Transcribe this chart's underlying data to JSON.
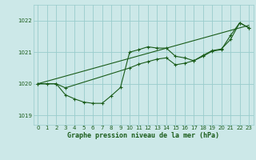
{
  "title": "Graphe pression niveau de la mer (hPa)",
  "bg_color": "#cce8e8",
  "grid_color": "#99cccc",
  "line_color": "#1a5c1a",
  "xlim": [
    -0.5,
    23.5
  ],
  "ylim": [
    1018.7,
    1022.5
  ],
  "yticks": [
    1019,
    1020,
    1021,
    1022
  ],
  "xticks": [
    0,
    1,
    2,
    3,
    4,
    5,
    6,
    7,
    8,
    9,
    10,
    11,
    12,
    13,
    14,
    15,
    16,
    17,
    18,
    19,
    20,
    21,
    22,
    23
  ],
  "line1_x": [
    0,
    1,
    2,
    3,
    4,
    5,
    6,
    7,
    8,
    9,
    10,
    11,
    12,
    13,
    14,
    15,
    16,
    17,
    18,
    19,
    20,
    21,
    22,
    23
  ],
  "line1_y": [
    1020.0,
    1020.0,
    1020.0,
    1019.65,
    1019.52,
    1019.42,
    1019.38,
    1019.38,
    1019.62,
    1019.88,
    1021.0,
    1021.08,
    1021.17,
    1021.13,
    1021.13,
    1020.87,
    1020.82,
    1020.73,
    1020.87,
    1021.03,
    1021.08,
    1021.53,
    1021.93,
    1021.77
  ],
  "line2_x": [
    0,
    2,
    3,
    10,
    11,
    12,
    13,
    14,
    15,
    16,
    17,
    18,
    19,
    20,
    21,
    22,
    23
  ],
  "line2_y": [
    1020.0,
    1020.0,
    1019.87,
    1020.5,
    1020.62,
    1020.7,
    1020.78,
    1020.82,
    1020.6,
    1020.65,
    1020.73,
    1020.9,
    1021.05,
    1021.1,
    1021.4,
    1021.93,
    1021.77
  ],
  "trend_x": [
    0,
    23
  ],
  "trend_y": [
    1020.0,
    1021.85
  ]
}
